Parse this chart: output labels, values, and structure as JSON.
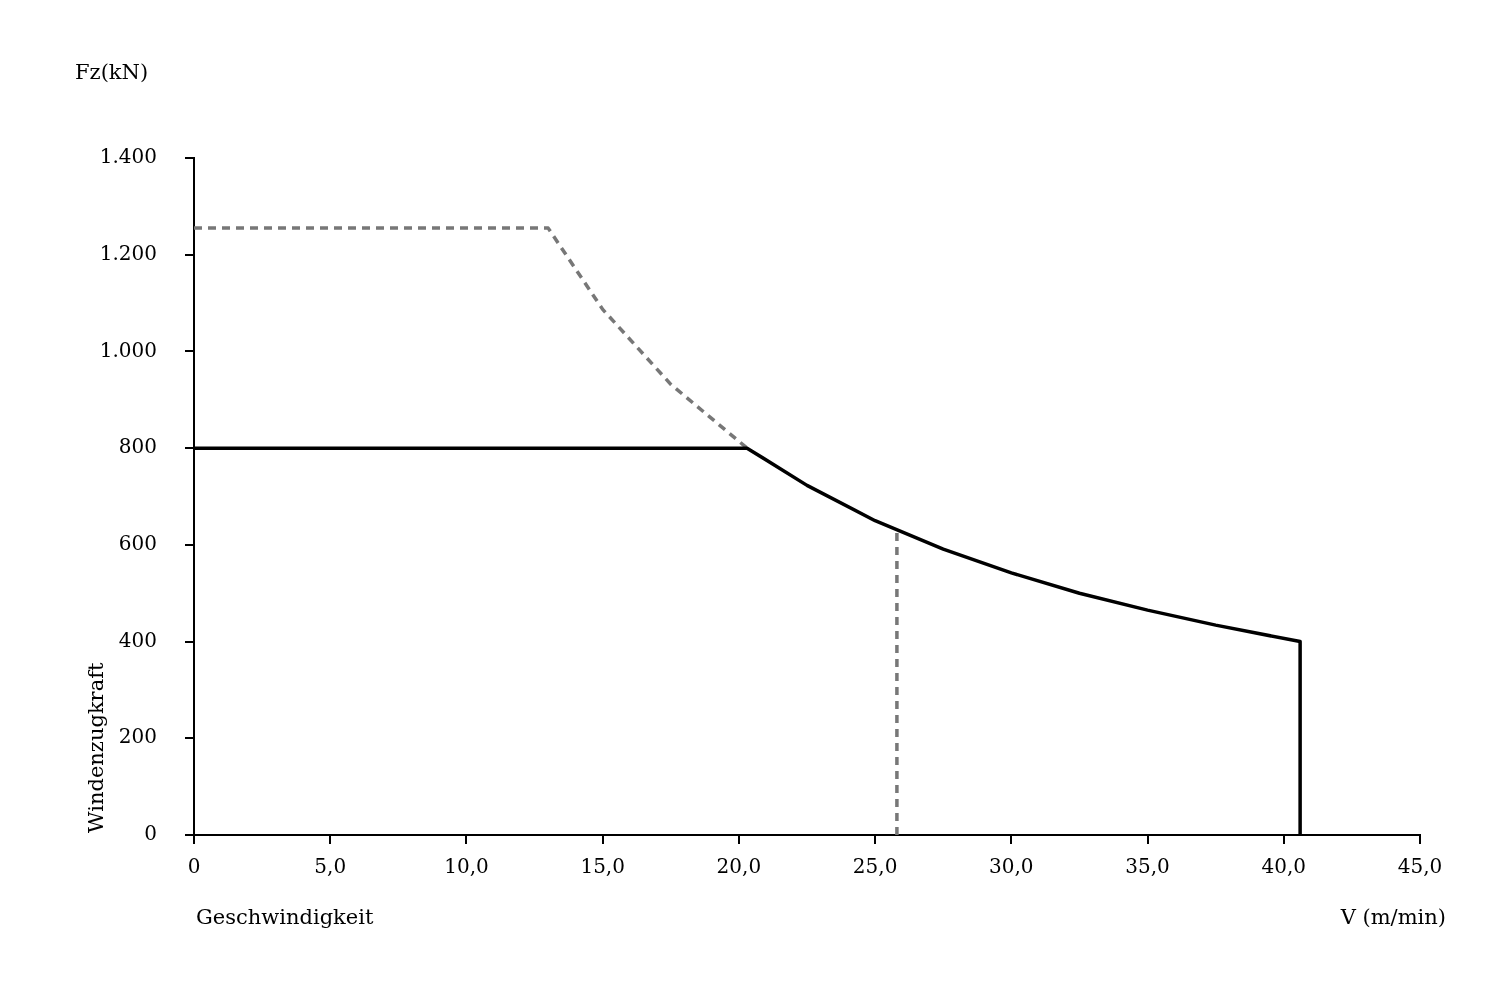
{
  "chart_data": {
    "type": "line",
    "xlabel": "Geschwindigkeit",
    "ylabel": "Windenzugkraft",
    "annotations": [
      "Fz(kN)",
      "V (m/min)"
    ],
    "series": [
      {
        "color": "#000000",
        "line_style": "solid",
        "x": [
          0,
          20.3,
          22.5,
          25,
          27.5,
          30,
          32.5,
          35,
          37.5,
          40.6,
          40.6
        ],
        "values": [
          800,
          800,
          723,
          650,
          591,
          542,
          500,
          465,
          434,
          400,
          0
        ]
      },
      {
        "color": "#777777",
        "line_style": "dashed",
        "x": [
          0,
          13,
          15,
          17.5,
          20.3
        ],
        "values": [
          1255,
          1255,
          1087,
          932,
          800
        ]
      },
      {
        "color": "#777777",
        "line_style": "dashed",
        "x": [
          25.8,
          25.8
        ],
        "values": [
          0,
          630
        ]
      }
    ],
    "xlim": [
      0,
      45
    ],
    "xticks": [
      0,
      {
        "value": 5,
        "label": "5,0"
      },
      {
        "value": 10,
        "label": "10,0"
      },
      {
        "value": 15,
        "label": "15,0"
      },
      {
        "value": 20,
        "label": "20,0"
      },
      {
        "value": 25,
        "label": "25,0"
      },
      {
        "value": 30,
        "label": "30,0"
      },
      {
        "value": 35,
        "label": "35,0"
      },
      {
        "value": 40,
        "label": "40,0"
      },
      {
        "value": 45,
        "label": "45,0"
      }
    ],
    "ylim": [
      0,
      1400
    ],
    "yticks": [
      0,
      200,
      400,
      600,
      800,
      {
        "value": 1000,
        "label": "1.000"
      },
      {
        "value": 1200,
        "label": "1.200"
      },
      {
        "value": 1400,
        "label": "1.400"
      }
    ],
    "grid": false,
    "legend": false,
    "marker": "none"
  }
}
